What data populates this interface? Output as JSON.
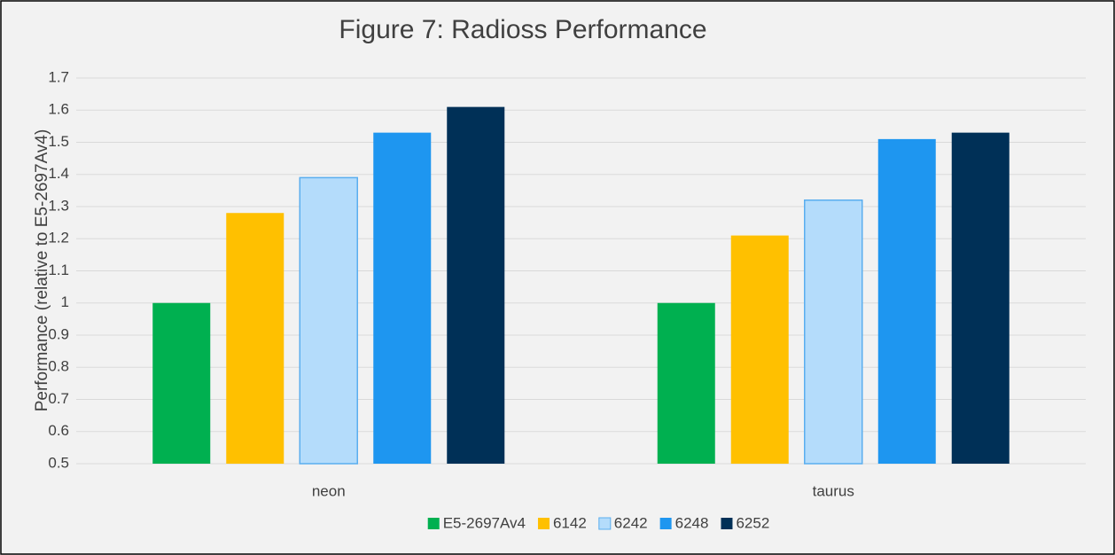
{
  "chart_data": {
    "type": "bar",
    "title": "Figure 7: Radioss Performance",
    "y_label": "Performance (relative to E5-2697Av4)",
    "categories": [
      "neon",
      "taurus"
    ],
    "series": [
      {
        "name": "E5-2697Av4",
        "color": "#00b050",
        "values": [
          1.0,
          1.0
        ]
      },
      {
        "name": "6142",
        "color": "#ffc000",
        "values": [
          1.28,
          1.21
        ]
      },
      {
        "name": "6242",
        "color": "#b4dcfb",
        "values": [
          1.39,
          1.32
        ]
      },
      {
        "name": "6248",
        "color": "#1e96f0",
        "values": [
          1.53,
          1.51
        ]
      },
      {
        "name": "6252",
        "color": "#003057",
        "values": [
          1.61,
          1.53
        ]
      }
    ],
    "ylim": [
      0.5,
      1.7
    ],
    "yticks": [
      0.5,
      0.6,
      0.7,
      0.8,
      0.9,
      1,
      1.1,
      1.2,
      1.3,
      1.4,
      1.5,
      1.6,
      1.7
    ],
    "grid": true,
    "legend": "bottom"
  }
}
